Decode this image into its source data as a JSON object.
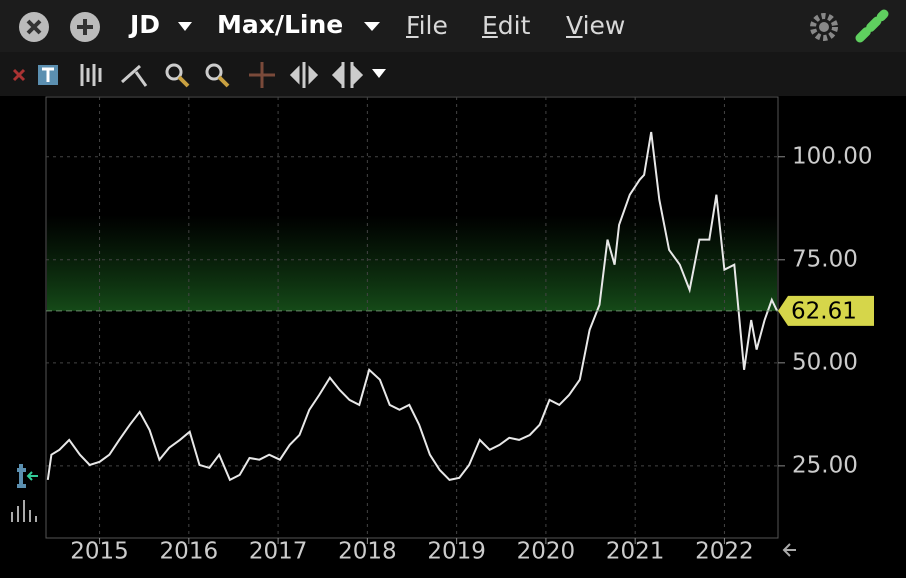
{
  "toolbar": {
    "symbol": "JD",
    "mode": "Max/Line",
    "menus": [
      "File",
      "Edit",
      "View"
    ]
  },
  "chart_data": {
    "type": "line",
    "x": [
      2014.42,
      2014.46,
      2014.55,
      2014.66,
      2014.78,
      2014.89,
      2015.0,
      2015.11,
      2015.22,
      2015.34,
      2015.45,
      2015.56,
      2015.67,
      2015.78,
      2015.9,
      2016.01,
      2016.12,
      2016.23,
      2016.34,
      2016.46,
      2016.57,
      2016.68,
      2016.79,
      2016.9,
      2017.02,
      2017.13,
      2017.24,
      2017.35,
      2017.46,
      2017.58,
      2017.69,
      2017.8,
      2017.91,
      2018.02,
      2018.14,
      2018.25,
      2018.36,
      2018.47,
      2018.58,
      2018.7,
      2018.81,
      2018.92,
      2019.03,
      2019.14,
      2019.26,
      2019.37,
      2019.48,
      2019.59,
      2019.7,
      2019.82,
      2019.93,
      2020.04,
      2020.15,
      2020.26,
      2020.38,
      2020.49,
      2020.6,
      2020.69,
      2020.77,
      2020.82,
      2020.94,
      2021.05,
      2021.1,
      2021.18,
      2021.27,
      2021.38,
      2021.5,
      2021.61,
      2021.72,
      2021.83,
      2021.91,
      2022.0,
      2022.11,
      2022.22,
      2022.3,
      2022.36,
      2022.45,
      2022.53,
      2022.59
    ],
    "series": [
      {
        "color": "#e8e8e8",
        "values": [
          21.6,
          27.7,
          28.9,
          31.3,
          27.7,
          25.2,
          26,
          27.7,
          31.3,
          35,
          38.1,
          33.7,
          26.5,
          29.4,
          31.3,
          33.3,
          25.2,
          24.5,
          27.7,
          21.6,
          22.8,
          26.9,
          26.5,
          27.7,
          26.5,
          30.1,
          32.5,
          38.6,
          42.2,
          46.4,
          43.4,
          41,
          39.8,
          48.3,
          45.9,
          39.8,
          38.6,
          39.8,
          35,
          27.7,
          24,
          21.6,
          22.1,
          25.2,
          31.3,
          28.9,
          30.1,
          31.8,
          31.3,
          32.5,
          35,
          41,
          39.8,
          42.2,
          45.9,
          58,
          64.1,
          79.9,
          73.8,
          83.5,
          90.8,
          94.4,
          95.6,
          106,
          89.6,
          77.4,
          73.8,
          67.7,
          79.9,
          79.9,
          90.8,
          72.6,
          73.8,
          48.3,
          60.4,
          53.2,
          60.4,
          65.3,
          62.61
        ]
      }
    ],
    "last_price": 62.61,
    "xlim": [
      2014.4,
      2022.6
    ],
    "xticks": [
      2015,
      2016,
      2017,
      2018,
      2019,
      2020,
      2021,
      2022
    ],
    "ylim": [
      7.5,
      114.5
    ],
    "yticks": [
      {
        "value": 25,
        "label": "25.00"
      },
      {
        "value": 50,
        "label": "50.00"
      },
      {
        "value": 75,
        "label": "75.00"
      },
      {
        "value": 100,
        "label": "100.00"
      }
    ],
    "grid": true
  }
}
